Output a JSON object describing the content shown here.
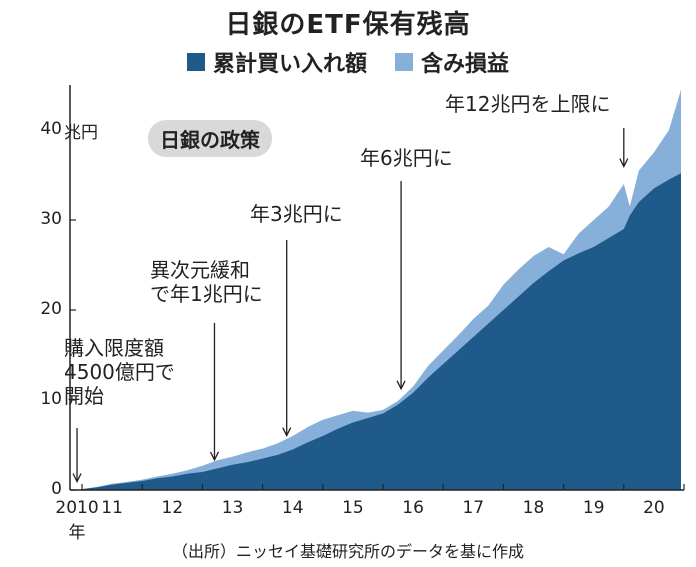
{
  "chart_data": {
    "type": "area",
    "title": "日銀のETF保有残高",
    "unit_label": "兆円",
    "ylim": [
      0,
      45
    ],
    "yticks": [
      {
        "value": 0,
        "label": "0"
      },
      {
        "value": 10,
        "label": "10"
      },
      {
        "value": 20,
        "label": "20"
      },
      {
        "value": 30,
        "label": "30"
      },
      {
        "value": 40,
        "label": "40"
      }
    ],
    "xlim": [
      2010.8,
      2021.0
    ],
    "xticks": [
      {
        "value": 2010.917,
        "label": "2010年"
      },
      {
        "value": 2011.5,
        "label": "11"
      },
      {
        "value": 2012.5,
        "label": "12"
      },
      {
        "value": 2013.5,
        "label": "13"
      },
      {
        "value": 2014.5,
        "label": "14"
      },
      {
        "value": 2015.5,
        "label": "15"
      },
      {
        "value": 2016.5,
        "label": "16"
      },
      {
        "value": 2017.5,
        "label": "17"
      },
      {
        "value": 2018.5,
        "label": "18"
      },
      {
        "value": 2019.5,
        "label": "19"
      },
      {
        "value": 2020.5,
        "label": "20"
      }
    ],
    "x": [
      2010.917,
      2011.0,
      2011.25,
      2011.5,
      2011.75,
      2012.0,
      2012.25,
      2012.5,
      2012.75,
      2013.0,
      2013.25,
      2013.5,
      2013.75,
      2014.0,
      2014.25,
      2014.5,
      2014.75,
      2015.0,
      2015.25,
      2015.5,
      2015.75,
      2016.0,
      2016.25,
      2016.5,
      2016.75,
      2017.0,
      2017.25,
      2017.5,
      2017.75,
      2018.0,
      2018.25,
      2018.5,
      2018.75,
      2019.0,
      2019.25,
      2019.5,
      2019.75,
      2020.0,
      2020.1,
      2020.25,
      2020.5,
      2020.75,
      2020.95
    ],
    "series": [
      {
        "name": "累計買い入れ額",
        "color": "#1f5a8a",
        "values": [
          0.0,
          0.1,
          0.3,
          0.6,
          0.8,
          1.0,
          1.3,
          1.5,
          1.8,
          2.0,
          2.4,
          2.8,
          3.1,
          3.5,
          3.9,
          4.5,
          5.3,
          6.0,
          6.8,
          7.5,
          8.0,
          8.5,
          9.5,
          10.8,
          12.5,
          14.0,
          15.5,
          17.0,
          18.5,
          20.0,
          21.5,
          23.0,
          24.3,
          25.5,
          26.3,
          27.0,
          28.0,
          29.0,
          30.5,
          32.0,
          33.5,
          34.5,
          35.2
        ]
      },
      {
        "name": "含み損益",
        "color": "#86b0d9",
        "values": [
          0.0,
          0.1,
          0.35,
          0.7,
          0.9,
          1.15,
          1.5,
          1.8,
          2.2,
          2.7,
          3.3,
          3.7,
          4.2,
          4.6,
          5.2,
          6.0,
          7.0,
          7.8,
          8.3,
          8.8,
          8.6,
          8.9,
          9.9,
          11.5,
          13.8,
          15.5,
          17.2,
          19.0,
          20.5,
          22.8,
          24.5,
          26.0,
          27.0,
          26.2,
          28.5,
          30.0,
          31.5,
          34.0,
          31.5,
          35.5,
          37.5,
          40.0,
          44.5
        ]
      }
    ],
    "annotations": [
      {
        "text": "購入限度額\n4500億円で\n開始",
        "x": 2010.917,
        "arrow_to": 0.5
      },
      {
        "text": "異次元緩和\nで年1兆円に",
        "x": 2013.2,
        "arrow_to": 2.9
      },
      {
        "text": "年3兆円に",
        "x": 2014.4,
        "arrow_to": 5.6
      },
      {
        "text": "年6兆円に",
        "x": 2016.3,
        "arrow_to": 10.8
      },
      {
        "text": "年12兆円を上限に",
        "x": 2020.0,
        "arrow_to": 35.5
      }
    ],
    "policy_label": "日銀の政策",
    "source": "（出所）ニッセイ基礎研究所のデータを基に作成",
    "grid": false
  }
}
